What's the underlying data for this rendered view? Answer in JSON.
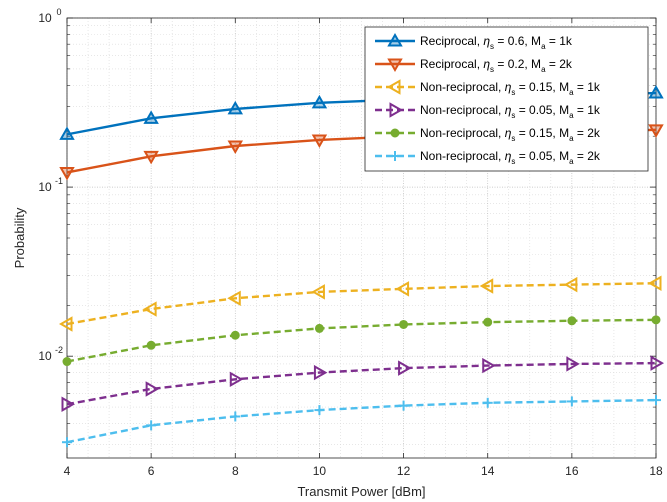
{
  "chart_data": {
    "type": "line",
    "title": "",
    "xlabel": "Transmit Power [dBm]",
    "ylabel": "Probability",
    "xlim": [
      4,
      18
    ],
    "ylim": [
      0.0025,
      1
    ],
    "yscale": "log",
    "grid": true,
    "legend_position": "top-right",
    "x_ticks": [
      "4",
      "6",
      "8",
      "10",
      "12",
      "14",
      "16",
      "18"
    ],
    "y_ticks": [
      {
        "base": "10",
        "exp": "0",
        "value": 1
      },
      {
        "base": "10",
        "exp": "-1",
        "value": 0.1
      },
      {
        "base": "10",
        "exp": "-2",
        "value": 0.01
      }
    ],
    "x": [
      4,
      6,
      8,
      10,
      12,
      14,
      16,
      18
    ],
    "series": [
      {
        "legend": {
          "prefix": "Reciprocal, ",
          "greek": "η",
          "sub1": "s",
          "mid": " = 0.6, M",
          "sub2": "a",
          "suffix": " = 1k"
        },
        "values": [
          0.205,
          0.255,
          0.29,
          0.315,
          0.33,
          0.34,
          0.35,
          0.36
        ],
        "color": "#0072BD",
        "dash": "solid",
        "marker": "triangle-up"
      },
      {
        "legend": {
          "prefix": "Reciprocal, ",
          "greek": "η",
          "sub1": "s",
          "mid": " = 0.2, M",
          "sub2": "a",
          "suffix": " = 2k"
        },
        "values": [
          0.122,
          0.152,
          0.175,
          0.19,
          0.2,
          0.207,
          0.212,
          0.218
        ],
        "color": "#D95319",
        "dash": "solid",
        "marker": "triangle-down"
      },
      {
        "legend": {
          "prefix": "Non-reciprocal, ",
          "greek": "η",
          "sub1": "s",
          "mid": " = 0.15, M",
          "sub2": "a",
          "suffix": " = 1k"
        },
        "values": [
          0.0155,
          0.019,
          0.022,
          0.024,
          0.025,
          0.026,
          0.0265,
          0.027
        ],
        "color": "#EDB120",
        "dash": "dashed",
        "marker": "triangle-left"
      },
      {
        "legend": {
          "prefix": "Non-reciprocal, ",
          "greek": "η",
          "sub1": "s",
          "mid": " = 0.05, M",
          "sub2": "a",
          "suffix": " = 1k"
        },
        "values": [
          0.0052,
          0.0064,
          0.0073,
          0.008,
          0.0085,
          0.0088,
          0.009,
          0.0091
        ],
        "color": "#7E2F8E",
        "dash": "dashed",
        "marker": "triangle-right"
      },
      {
        "legend": {
          "prefix": "Non-reciprocal, ",
          "greek": "η",
          "sub1": "s",
          "mid": " = 0.15, M",
          "sub2": "a",
          "suffix": " = 2k"
        },
        "values": [
          0.0093,
          0.0116,
          0.0133,
          0.0146,
          0.0154,
          0.0159,
          0.0162,
          0.0164
        ],
        "color": "#77AC30",
        "dash": "dashed",
        "marker": "circle"
      },
      {
        "legend": {
          "prefix": "Non-reciprocal, ",
          "greek": "η",
          "sub1": "s",
          "mid": " = 0.05, M",
          "sub2": "a",
          "suffix": " = 2k"
        },
        "values": [
          0.0031,
          0.0039,
          0.0044,
          0.0048,
          0.0051,
          0.0053,
          0.0054,
          0.0055
        ],
        "color": "#4DBEEE",
        "dash": "dashed",
        "marker": "plus"
      }
    ]
  }
}
